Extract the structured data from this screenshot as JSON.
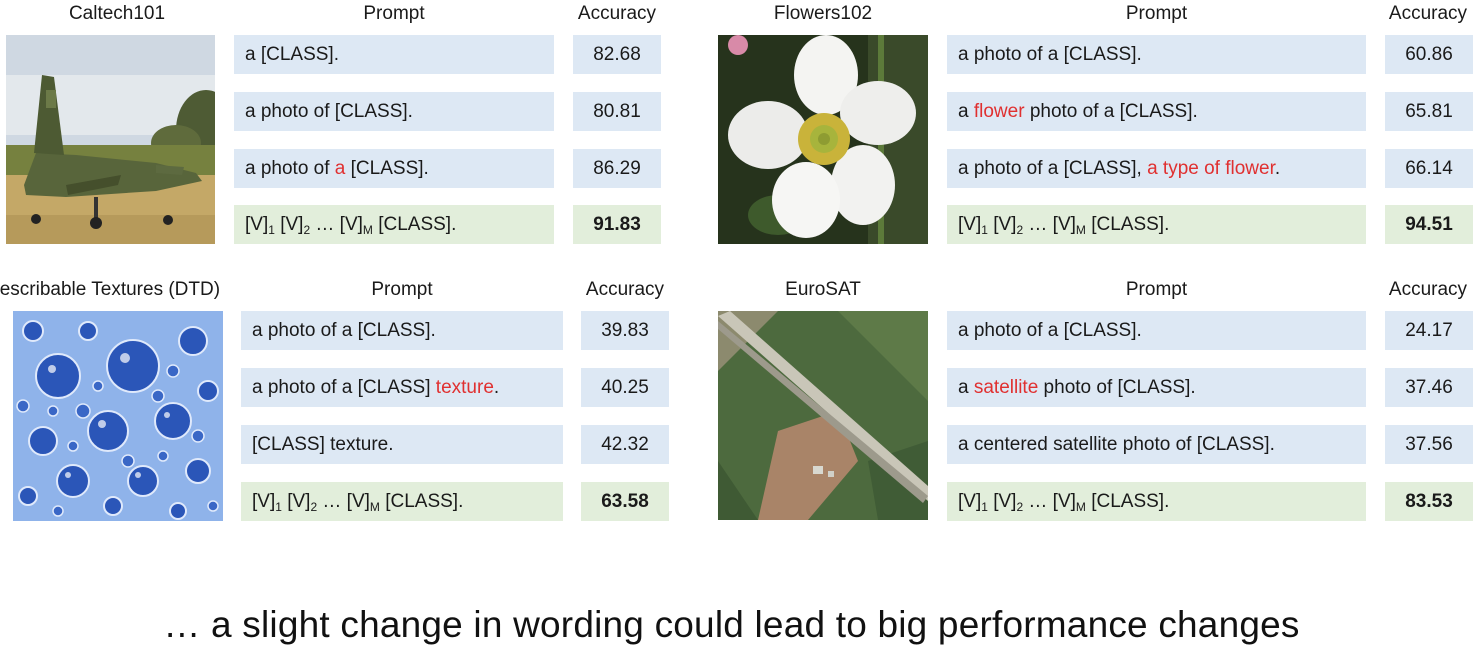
{
  "caption": "… a slight change in wording could lead to big performance changes",
  "colors": {
    "highlight": "#e03030",
    "prompt_bg": "#dde8f4",
    "learned_bg": "#e2eedb"
  },
  "panels": [
    {
      "title": "Caltech101",
      "prompt_header": "Prompt",
      "accuracy_header": "Accuracy",
      "image": "fighter-jet-photo",
      "rows": [
        {
          "prompt": [
            {
              "t": "a [CLASS]."
            }
          ],
          "accuracy": "82.68"
        },
        {
          "prompt": [
            {
              "t": "a photo of [CLASS]."
            }
          ],
          "accuracy": "80.81"
        },
        {
          "prompt": [
            {
              "t": "a photo of "
            },
            {
              "t": "a",
              "hl": true
            },
            {
              "t": " [CLASS]."
            }
          ],
          "accuracy": "86.29"
        },
        {
          "prompt": [
            {
              "t": "[V]"
            },
            {
              "t": "1",
              "sub": true
            },
            {
              "t": " [V]"
            },
            {
              "t": "2",
              "sub": true
            },
            {
              "t": " … [V]"
            },
            {
              "t": "M",
              "sub": true
            },
            {
              "t": " [CLASS]."
            }
          ],
          "accuracy": "91.83",
          "learned": true
        }
      ]
    },
    {
      "title": "Flowers102",
      "prompt_header": "Prompt",
      "accuracy_header": "Accuracy",
      "image": "white-flower-photo",
      "rows": [
        {
          "prompt": [
            {
              "t": "a photo of a [CLASS]."
            }
          ],
          "accuracy": "60.86"
        },
        {
          "prompt": [
            {
              "t": "a "
            },
            {
              "t": "flower",
              "hl": true
            },
            {
              "t": " photo of a [CLASS]."
            }
          ],
          "accuracy": "65.81"
        },
        {
          "prompt": [
            {
              "t": "a photo of a [CLASS], "
            },
            {
              "t": "a type of flower",
              "hl": true
            },
            {
              "t": "."
            }
          ],
          "accuracy": "66.14"
        },
        {
          "prompt": [
            {
              "t": "[V]"
            },
            {
              "t": "1",
              "sub": true
            },
            {
              "t": " [V]"
            },
            {
              "t": "2",
              "sub": true
            },
            {
              "t": " … [V]"
            },
            {
              "t": "M",
              "sub": true
            },
            {
              "t": " [CLASS]."
            }
          ],
          "accuracy": "94.51",
          "learned": true
        }
      ]
    },
    {
      "title": "Describable Textures (DTD)",
      "prompt_header": "Prompt",
      "accuracy_header": "Accuracy",
      "image": "water-droplets-texture",
      "rows": [
        {
          "prompt": [
            {
              "t": "a photo of a [CLASS]."
            }
          ],
          "accuracy": "39.83"
        },
        {
          "prompt": [
            {
              "t": "a photo of a [CLASS] "
            },
            {
              "t": "texture",
              "hl": true
            },
            {
              "t": "."
            }
          ],
          "accuracy": "40.25"
        },
        {
          "prompt": [
            {
              "t": "[CLASS] texture."
            }
          ],
          "accuracy": "42.32"
        },
        {
          "prompt": [
            {
              "t": "[V]"
            },
            {
              "t": "1",
              "sub": true
            },
            {
              "t": " [V]"
            },
            {
              "t": "2",
              "sub": true
            },
            {
              "t": " … [V]"
            },
            {
              "t": "M",
              "sub": true
            },
            {
              "t": " [CLASS]."
            }
          ],
          "accuracy": "63.58",
          "learned": true
        }
      ]
    },
    {
      "title": "EuroSAT",
      "prompt_header": "Prompt",
      "accuracy_header": "Accuracy",
      "image": "satellite-highway-photo",
      "rows": [
        {
          "prompt": [
            {
              "t": "a photo of a [CLASS]."
            }
          ],
          "accuracy": "24.17"
        },
        {
          "prompt": [
            {
              "t": "a "
            },
            {
              "t": "satellite",
              "hl": true
            },
            {
              "t": " photo of [CLASS]."
            }
          ],
          "accuracy": "37.46"
        },
        {
          "prompt": [
            {
              "t": "a centered satellite photo of [CLASS]."
            }
          ],
          "accuracy": "37.56"
        },
        {
          "prompt": [
            {
              "t": "[V]"
            },
            {
              "t": "1",
              "sub": true
            },
            {
              "t": " [V]"
            },
            {
              "t": "2",
              "sub": true
            },
            {
              "t": " … [V]"
            },
            {
              "t": "M",
              "sub": true
            },
            {
              "t": " [CLASS]."
            }
          ],
          "accuracy": "83.53",
          "learned": true
        }
      ]
    }
  ]
}
